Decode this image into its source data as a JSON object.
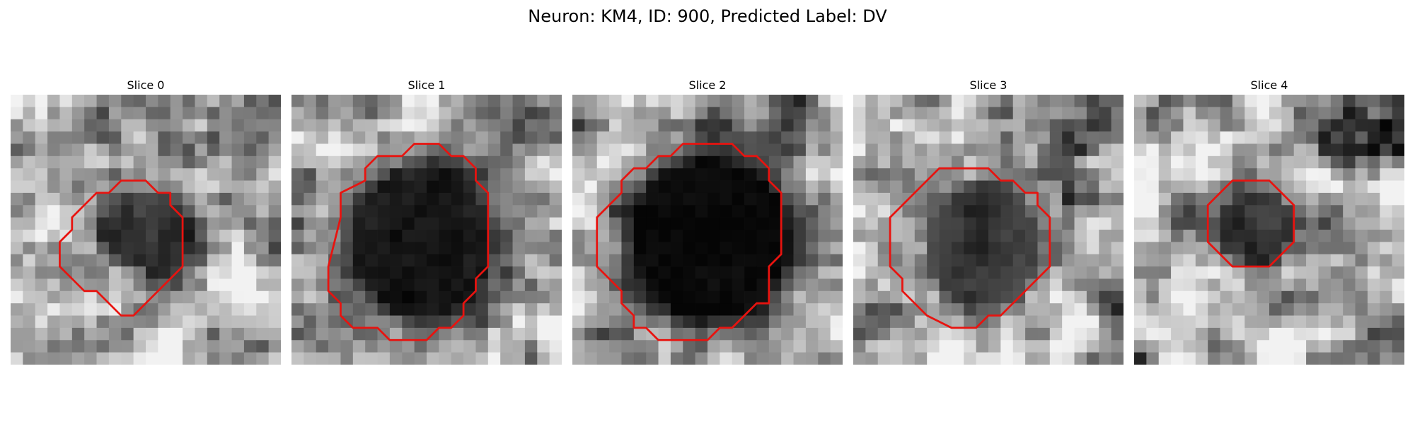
{
  "figure": {
    "title": "Neuron: KM4, ID: 900, Predicted Label: DV"
  },
  "panels": [
    {
      "title": "Slice 0",
      "contour": [
        [
          9,
          7
        ],
        [
          11,
          7
        ],
        [
          12,
          8
        ],
        [
          13,
          8
        ],
        [
          13,
          9
        ],
        [
          14,
          10
        ],
        [
          14,
          14
        ],
        [
          10,
          18
        ],
        [
          9,
          18
        ],
        [
          7,
          16
        ],
        [
          6,
          16
        ],
        [
          5,
          15
        ],
        [
          4,
          14
        ],
        [
          4,
          12
        ],
        [
          5,
          11
        ],
        [
          5,
          10
        ],
        [
          6,
          9
        ],
        [
          7,
          8
        ],
        [
          8,
          8
        ]
      ]
    },
    {
      "title": "Slice 1",
      "contour": [
        [
          10,
          4
        ],
        [
          12,
          4
        ],
        [
          13,
          5
        ],
        [
          14,
          5
        ],
        [
          15,
          6
        ],
        [
          15,
          7
        ],
        [
          16,
          8
        ],
        [
          16,
          10
        ],
        [
          16,
          14
        ],
        [
          15,
          15
        ],
        [
          15,
          16
        ],
        [
          14,
          17
        ],
        [
          14,
          18
        ],
        [
          13,
          19
        ],
        [
          12,
          19
        ],
        [
          11,
          20
        ],
        [
          8,
          20
        ],
        [
          7,
          19
        ],
        [
          5,
          19
        ],
        [
          4,
          18
        ],
        [
          4,
          17
        ],
        [
          3,
          16
        ],
        [
          3,
          14
        ],
        [
          4,
          10
        ],
        [
          4,
          8
        ],
        [
          6,
          7
        ],
        [
          6,
          6
        ],
        [
          7,
          5
        ],
        [
          9,
          5
        ]
      ]
    },
    {
      "title": "Slice 2",
      "contour": [
        [
          9,
          4
        ],
        [
          13,
          4
        ],
        [
          14,
          5
        ],
        [
          15,
          5
        ],
        [
          16,
          6
        ],
        [
          16,
          7
        ],
        [
          17,
          8
        ],
        [
          17,
          10
        ],
        [
          17,
          13
        ],
        [
          16,
          14
        ],
        [
          16,
          17
        ],
        [
          15,
          17
        ],
        [
          13,
          19
        ],
        [
          12,
          19
        ],
        [
          11,
          20
        ],
        [
          7,
          20
        ],
        [
          6,
          19
        ],
        [
          5,
          19
        ],
        [
          5,
          18
        ],
        [
          4,
          17
        ],
        [
          4,
          16
        ],
        [
          3,
          15
        ],
        [
          2,
          14
        ],
        [
          2,
          10
        ],
        [
          3,
          9
        ],
        [
          4,
          8
        ],
        [
          4,
          7
        ],
        [
          5,
          6
        ],
        [
          6,
          6
        ],
        [
          7,
          5
        ],
        [
          8,
          5
        ]
      ]
    },
    {
      "title": "Slice 3",
      "contour": [
        [
          8,
          6
        ],
        [
          11,
          6
        ],
        [
          12,
          7
        ],
        [
          13,
          7
        ],
        [
          14,
          8
        ],
        [
          15,
          8
        ],
        [
          15,
          9
        ],
        [
          16,
          10
        ],
        [
          16,
          14
        ],
        [
          14,
          16
        ],
        [
          12,
          18
        ],
        [
          11,
          18
        ],
        [
          10,
          19
        ],
        [
          8,
          19
        ],
        [
          6,
          18
        ],
        [
          5,
          17
        ],
        [
          4,
          16
        ],
        [
          4,
          15
        ],
        [
          3,
          14
        ],
        [
          3,
          10
        ],
        [
          5,
          8
        ],
        [
          6,
          7
        ],
        [
          7,
          6
        ]
      ]
    },
    {
      "title": "Slice 4",
      "contour": [
        [
          8,
          7
        ],
        [
          11,
          7
        ],
        [
          12,
          8
        ],
        [
          13,
          9
        ],
        [
          13,
          12
        ],
        [
          11,
          14
        ],
        [
          8,
          14
        ],
        [
          6,
          12
        ],
        [
          6,
          9
        ],
        [
          7,
          8
        ]
      ]
    }
  ]
}
